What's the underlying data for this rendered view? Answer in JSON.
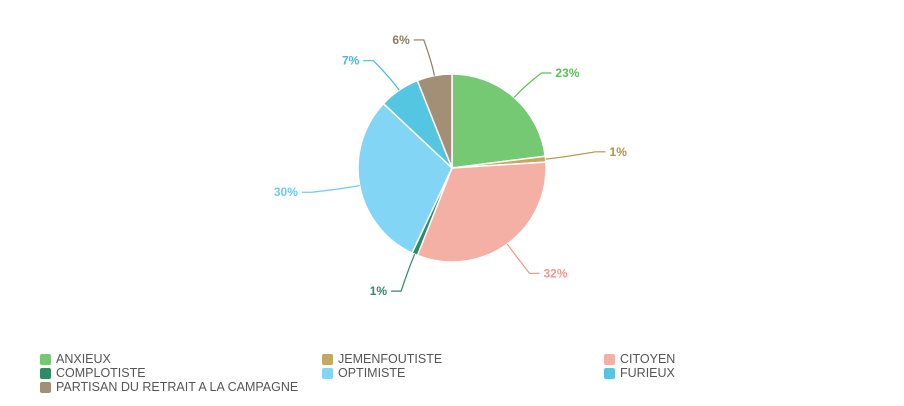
{
  "chart_data": {
    "type": "pie",
    "title": "",
    "start": "top",
    "direction": "clockwise",
    "slices": [
      {
        "name": "ANXIEUX",
        "value": 23,
        "label": "23%",
        "color": "#76c973"
      },
      {
        "name": "JEMENFOUTISTE",
        "value": 1,
        "label": "1%",
        "color": "#c4a862"
      },
      {
        "name": "CITOYEN",
        "value": 32,
        "label": "32%",
        "color": "#f5b0a5"
      },
      {
        "name": "COMPLOTISTE",
        "value": 1,
        "label": "1%",
        "color": "#2c8c64"
      },
      {
        "name": "OPTIMISTE",
        "value": 30,
        "label": "30%",
        "color": "#82d5f5"
      },
      {
        "name": "FURIEUX",
        "value": 7,
        "label": "7%",
        "color": "#55c6e2"
      },
      {
        "name": "PARTISAN DU RETRAIT A LA CAMPAGNE",
        "value": 6,
        "label": "6%",
        "color": "#a28f76"
      }
    ],
    "label_colors": [
      "#5cbf59",
      "#b09542",
      "#f2998c",
      "#2c8c64",
      "#6ccbf0",
      "#45bcd9",
      "#8f7b62"
    ],
    "legend": {
      "placement": "bottom",
      "order": [
        "ANXIEUX",
        "JEMENFOUTISTE",
        "CITOYEN",
        "COMPLOTISTE",
        "OPTIMISTE",
        "FURIEUX",
        "PARTISAN DU RETRAIT A LA CAMPAGNE"
      ]
    }
  }
}
